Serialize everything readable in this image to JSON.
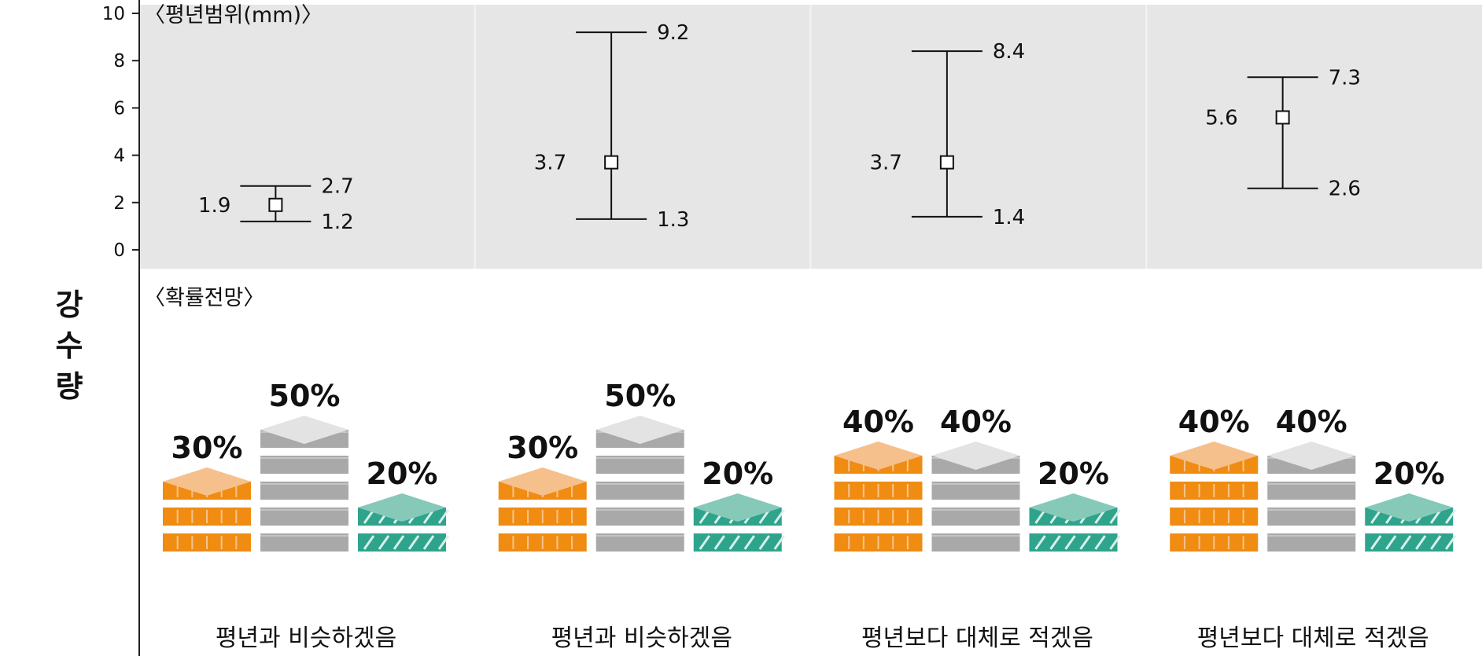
{
  "side_label": [
    "강",
    "수",
    "량"
  ],
  "colors": {
    "panel_bg": "#e6e6e6",
    "orange": "#f08c12",
    "orange_top": "#f5c08c",
    "gray": "#a9a9a9",
    "gray_top": "#e3e3e3",
    "teal": "#2ea48c",
    "teal_top": "#86c9b9"
  },
  "chart_data": [
    {
      "type": "errorbar",
      "title": "〈평년범위(mm)〉",
      "ylim": [
        0,
        10
      ],
      "yticks": [
        "0",
        "2",
        "4",
        "6",
        "8",
        "10"
      ],
      "grid": "vertical separators",
      "points": [
        {
          "center": 1.9,
          "low": 1.2,
          "high": 2.7,
          "center_label": "1.9",
          "low_label": "1.2",
          "high_label": "2.7"
        },
        {
          "center": 3.7,
          "low": 1.3,
          "high": 9.2,
          "center_label": "3.7",
          "low_label": "1.3",
          "high_label": "9.2"
        },
        {
          "center": 3.7,
          "low": 1.4,
          "high": 8.4,
          "center_label": "3.7",
          "low_label": "1.4",
          "high_label": "8.4"
        },
        {
          "center": 5.6,
          "low": 2.6,
          "high": 7.3,
          "center_label": "5.6",
          "low_label": "2.6",
          "high_label": "7.3"
        }
      ]
    },
    {
      "type": "bar",
      "title": "〈확률전망〉",
      "groups": [
        {
          "values": [
            30,
            50,
            20
          ],
          "labels": [
            "30%",
            "50%",
            "20%"
          ],
          "caption": "평년과 비슷하겠음"
        },
        {
          "values": [
            30,
            50,
            20
          ],
          "labels": [
            "30%",
            "50%",
            "20%"
          ],
          "caption": "평년과 비슷하겠음"
        },
        {
          "values": [
            40,
            40,
            20
          ],
          "labels": [
            "40%",
            "40%",
            "20%"
          ],
          "caption": "평년보다 대체로 적겠음"
        },
        {
          "values": [
            40,
            40,
            20
          ],
          "labels": [
            "40%",
            "40%",
            "20%"
          ],
          "caption": "평년보다 대체로 적겠음"
        }
      ]
    }
  ]
}
